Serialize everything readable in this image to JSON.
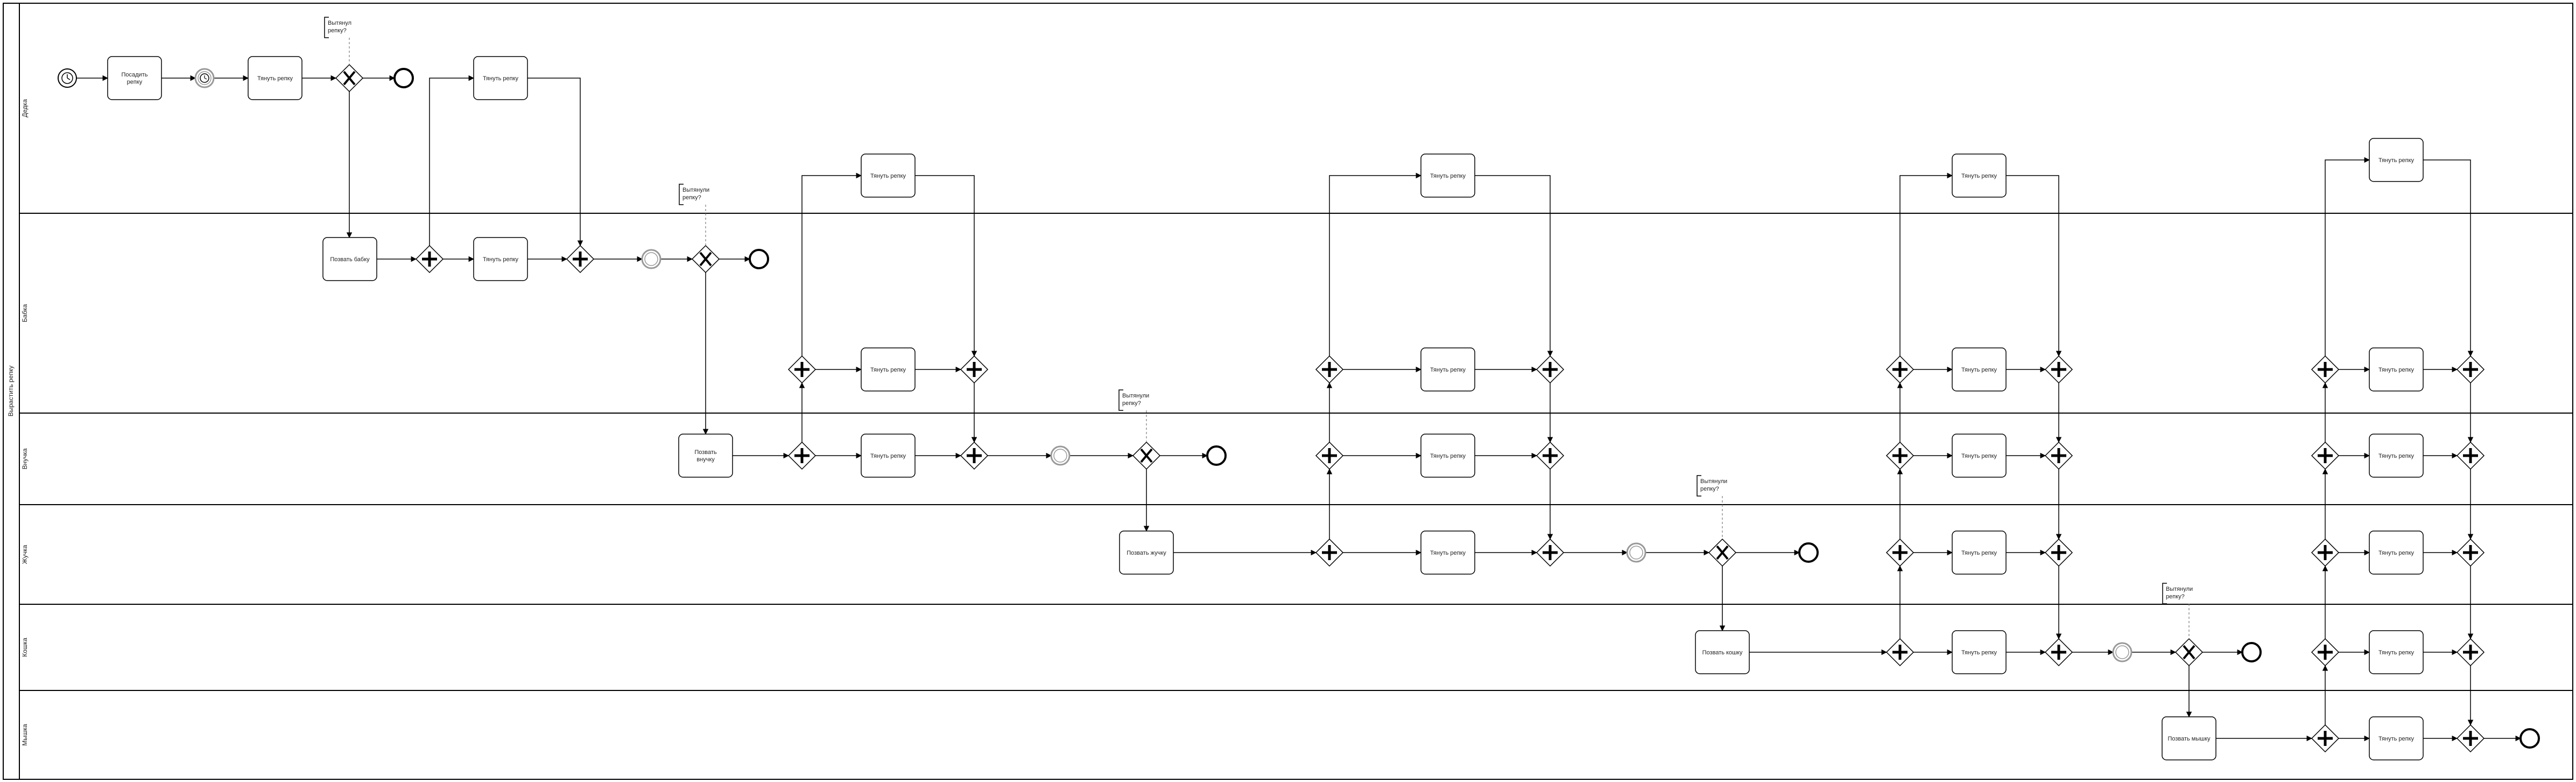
{
  "pool": {
    "label": "Вырастить репку"
  },
  "lanes": [
    {
      "id": "dedka",
      "label": "Дедка"
    },
    {
      "id": "babka",
      "label": "Бабка"
    },
    {
      "id": "vnuchka",
      "label": "Внучка"
    },
    {
      "id": "zhuchka",
      "label": "Жучка"
    },
    {
      "id": "koshka",
      "label": "Кошка"
    },
    {
      "id": "myshka",
      "label": "Мышка"
    }
  ],
  "tasks": {
    "plant": "Посадить репку",
    "pull": "Тянуть репку",
    "call_babka": "Позвать бабку",
    "call_vnuchka": "Позвать внучку",
    "call_zhuchka": "Позвать жучку",
    "call_koshka": "Позвать кошку",
    "call_myshka": "Позвать мышку"
  },
  "annotations": {
    "dedka": "Вытянул репку?",
    "plural": "Вытянули репку?"
  },
  "colors": {
    "stroke": "#000000",
    "intermediate": "#999999",
    "background": "#ffffff"
  }
}
